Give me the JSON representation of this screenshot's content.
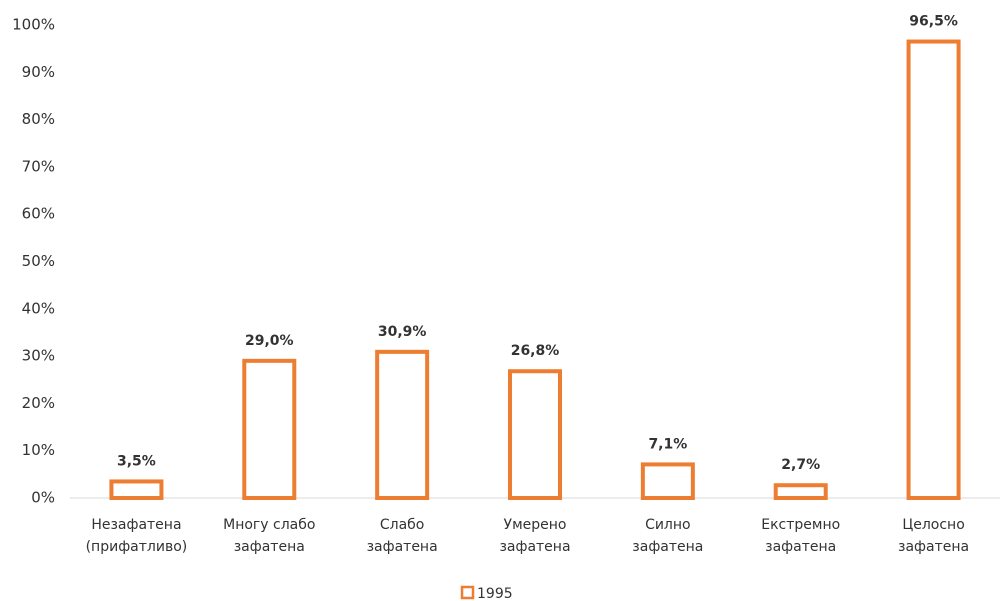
{
  "chart_data": {
    "type": "bar",
    "categories": [
      "Незафатена\n(прифатливо)",
      "Многу слабо\nзафатена",
      "Слабо\nзафатена",
      "Умерено\nзафатена",
      "Силно\nзафатена",
      "Екстремно\nзафатена",
      "Целосно\nзафатена"
    ],
    "series": [
      {
        "name": "1995",
        "color": "#ed7d31",
        "values": [
          3.5,
          29.0,
          30.9,
          26.8,
          7.1,
          2.7,
          96.5
        ],
        "value_labels": [
          "3,5%",
          "29,0%",
          "30,9%",
          "26,8%",
          "7,1%",
          "2,7%",
          "96,5%"
        ]
      }
    ],
    "ylim": [
      0,
      100
    ],
    "yticks": [
      {
        "value": 0,
        "label": "0%"
      },
      {
        "value": 10,
        "label": "10%"
      },
      {
        "value": 20,
        "label": "20%"
      },
      {
        "value": 30,
        "label": "30%"
      },
      {
        "value": 40,
        "label": "40%"
      },
      {
        "value": 50,
        "label": "50%"
      },
      {
        "value": 60,
        "label": "60%"
      },
      {
        "value": 70,
        "label": "70%"
      },
      {
        "value": 80,
        "label": "80%"
      },
      {
        "value": 90,
        "label": "90%"
      },
      {
        "value": 100,
        "label": "100%"
      }
    ],
    "legend": "bottom"
  }
}
